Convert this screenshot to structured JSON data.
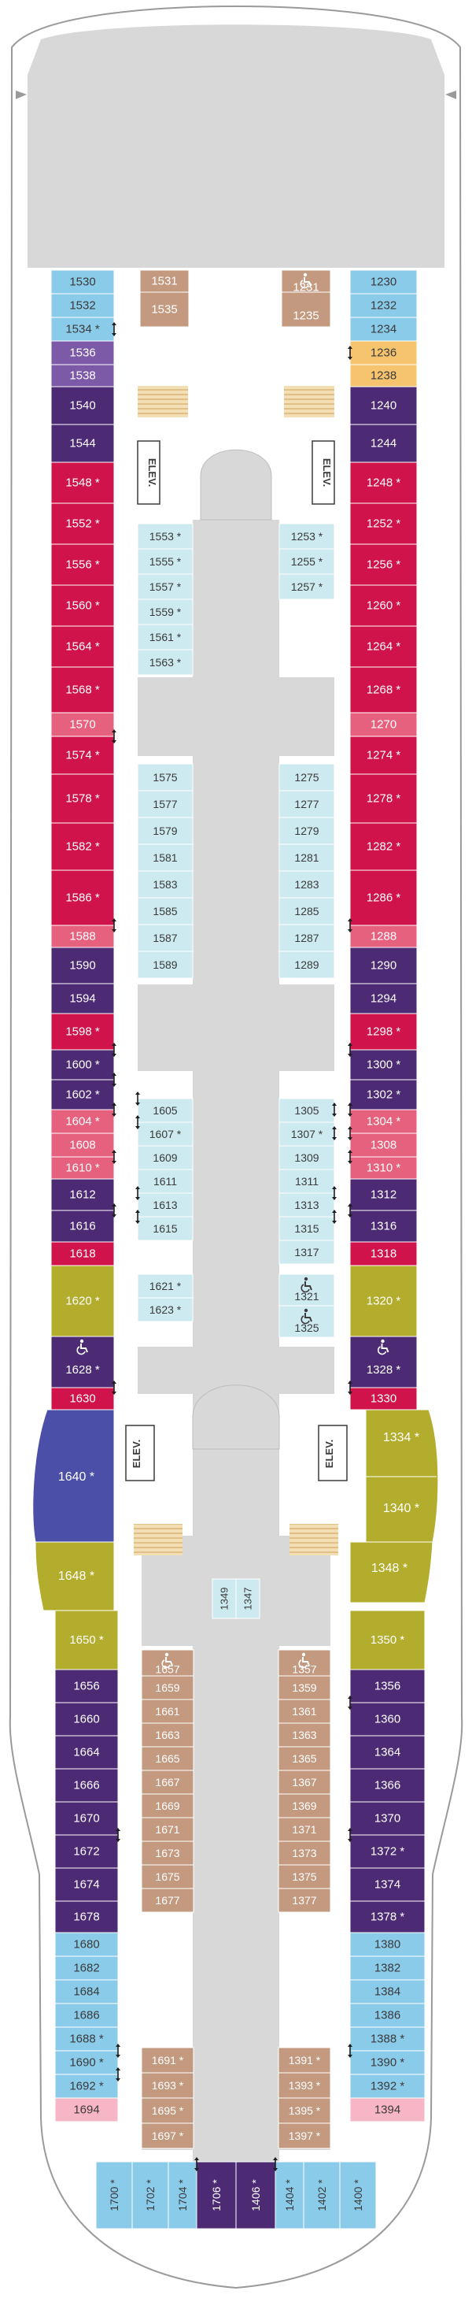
{
  "legend": {
    "balcony_asterisk": "*",
    "elevator_label": "ELEV."
  },
  "colors": {
    "suite_red": "#d0134a",
    "pink": "#e6617d",
    "light_pink": "#f7b6c6",
    "purple": "#4c2a74",
    "violet": "#7c5aa8",
    "sky": "#8bcbea",
    "pale_aqua": "#cdeaf0",
    "tan": "#c39a80",
    "amber": "#f6c46e",
    "olive": "#b3ad2d",
    "royal": "#4b4fa8",
    "hull_gray": "#d8d8d8",
    "text_dark": "#3a3a3a"
  },
  "cabins": {
    "port_forward": [
      "1530",
      "1532",
      "1534",
      "1536",
      "1538",
      "1540",
      "1544",
      "1548",
      "1552",
      "1556",
      "1560",
      "1564",
      "1568",
      "1570",
      "1574",
      "1578",
      "1582",
      "1586",
      "1588",
      "1590",
      "1594",
      "1598",
      "1600",
      "1602",
      "1604",
      "1608",
      "1610",
      "1612",
      "1616",
      "1618",
      "1620",
      "1628",
      "1630"
    ],
    "starboard_forward": [
      "1230",
      "1232",
      "1234",
      "1236",
      "1238",
      "1240",
      "1244",
      "1248",
      "1252",
      "1256",
      "1260",
      "1264",
      "1268",
      "1270",
      "1274",
      "1278",
      "1282",
      "1286",
      "1288",
      "1290",
      "1294",
      "1298",
      "1300",
      "1302",
      "1304",
      "1308",
      "1310",
      "1312",
      "1316",
      "1318",
      "1320",
      "1328",
      "1330"
    ],
    "inner_left": [
      "1531",
      "1535",
      "1553",
      "1555",
      "1557",
      "1559",
      "1561",
      "1563",
      "1575",
      "1577",
      "1579",
      "1581",
      "1583",
      "1585",
      "1587",
      "1589",
      "1605",
      "1607",
      "1609",
      "1611",
      "1613",
      "1615",
      "1621",
      "1623"
    ],
    "inner_right": [
      "1231",
      "1235",
      "1253",
      "1255",
      "1257",
      "1275",
      "1277",
      "1279",
      "1281",
      "1283",
      "1285",
      "1287",
      "1289",
      "1305",
      "1307",
      "1309",
      "1311",
      "1313",
      "1315",
      "1317",
      "1321",
      "1325"
    ],
    "port_aft": [
      "1640",
      "1648",
      "1650",
      "1656",
      "1660",
      "1664",
      "1666",
      "1670",
      "1672",
      "1674",
      "1678",
      "1680",
      "1682",
      "1684",
      "1686",
      "1688",
      "1690",
      "1692",
      "1694"
    ],
    "starboard_aft": [
      "1334",
      "1340",
      "1348",
      "1350",
      "1356",
      "1360",
      "1364",
      "1366",
      "1370",
      "1372",
      "1374",
      "1378",
      "1380",
      "1382",
      "1384",
      "1386",
      "1388",
      "1390",
      "1392",
      "1394"
    ],
    "center_aft_left": [
      "1657",
      "1659",
      "1661",
      "1663",
      "1665",
      "1667",
      "1669",
      "1671",
      "1673",
      "1675",
      "1677",
      "1691",
      "1693",
      "1695",
      "1697"
    ],
    "center_aft_right": [
      "1357",
      "1359",
      "1361",
      "1363",
      "1365",
      "1367",
      "1369",
      "1371",
      "1373",
      "1375",
      "1377",
      "1391",
      "1393",
      "1395",
      "1397"
    ],
    "center_small": [
      "1349",
      "1347"
    ],
    "stern": [
      "1700",
      "1702",
      "1704",
      "1706",
      "1406",
      "1404",
      "1402",
      "1400"
    ]
  }
}
